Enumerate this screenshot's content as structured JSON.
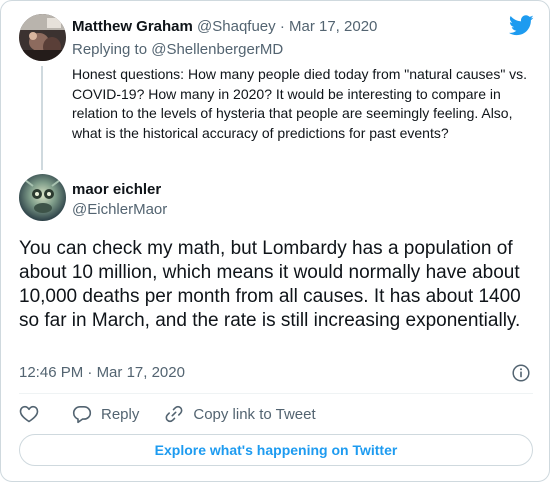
{
  "reply_tweet": {
    "author_name": "Matthew Graham",
    "author_handle": "@Shaqfuey",
    "separator": "·",
    "date": "Mar 17, 2020",
    "replying_to_prefix": "Replying to",
    "replying_to_handle": "@ShellenbergerMD",
    "text": "Honest questions: How many people died today from \"natural causes\" vs. COVID-19? How many in 2020? It would be interesting to compare in relation to the levels of hysteria that people are seemingly feeling. Also, what is the historical accuracy of predictions for past events?"
  },
  "main_tweet": {
    "author_name": "maor eichler",
    "author_handle": "@EichlerMaor",
    "text": "You can check my math, but Lombardy has a population of about 10 million, which means it would normally have about 10,000 deaths per month from all causes. It has about 1400 so far in March, and the rate is still increasing exponentially.",
    "time": "12:46 PM",
    "separator": "·",
    "date": "Mar 17, 2020"
  },
  "actions": {
    "reply_label": "Reply",
    "copy_label": "Copy link to Tweet"
  },
  "explore_label": "Explore what's happening on Twitter",
  "colors": {
    "accent": "#1d9bf0",
    "text_primary": "#0f1419",
    "text_secondary": "#536471",
    "border": "#cfd9de"
  },
  "icons": {
    "brand": "twitter-bird-icon",
    "info": "info-icon",
    "like": "heart-icon",
    "reply": "reply-bubble-icon",
    "copy": "link-icon"
  }
}
